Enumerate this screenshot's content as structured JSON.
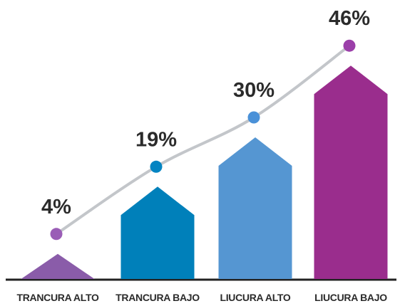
{
  "chart_data": {
    "type": "bar",
    "categories": [
      "TRANCURA ALTO",
      "TRANCURA BAJO",
      "LIUCURA  ALTO",
      "LIUCURA BAJO"
    ],
    "values": [
      4,
      19,
      30,
      46
    ],
    "value_labels": [
      "4%",
      "19%",
      "30%",
      "46%"
    ],
    "colors": [
      "#8a5ca9",
      "#0080ba",
      "#5596d2",
      "#9a2d8d"
    ],
    "dot_colors": [
      "#9a5db6",
      "#0384c2",
      "#4a91d8",
      "#9b3fa9"
    ],
    "line_color": "#c3c6ca"
  }
}
